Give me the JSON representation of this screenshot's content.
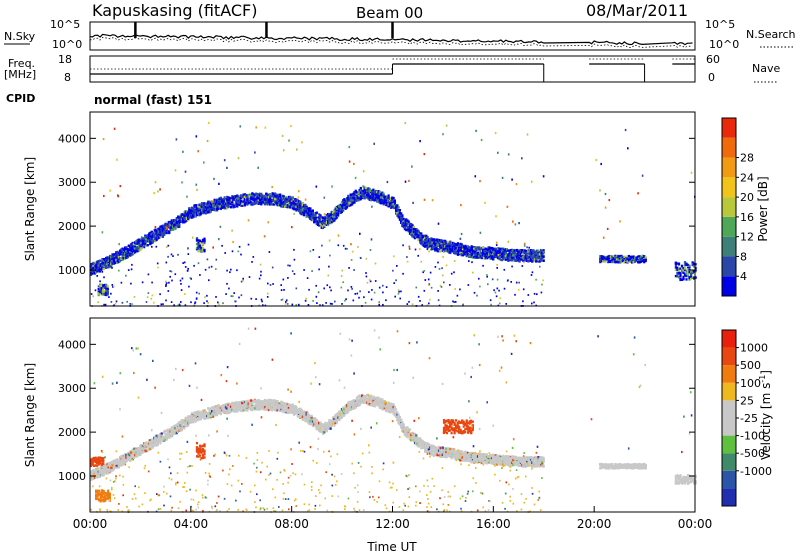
{
  "header": {
    "station": "Kapuskasing (fitACF)",
    "beam": "Beam 00",
    "date": "08/Mar/2011"
  },
  "params": {
    "nsky_label": "N.Sky",
    "nsky_ticks": [
      "10^5",
      "10^0"
    ],
    "nsearch_label": "N.Search",
    "nsearch_ticks": [
      "10^5",
      "10^0"
    ],
    "freq_label_1": "Freq.",
    "freq_label_2": "[MHz]",
    "freq_ticks": [
      "18",
      "8"
    ],
    "nave_label": "Nave",
    "nave_ticks": [
      "60",
      "0"
    ],
    "cpid_label": "CPID",
    "cpid_value": "normal (fast) 151"
  },
  "chart_data": [
    {
      "type": "heatmap",
      "panel": "power",
      "xlabel": "",
      "ylabel": "Slant Range [km]",
      "xlim": [
        0,
        24
      ],
      "ylim": [
        180,
        4600
      ],
      "yticks": [
        1000,
        2000,
        3000,
        4000
      ],
      "colorbar_label": "Power [dB]",
      "colorbar_ticks": [
        "4",
        "8",
        "12",
        "16",
        "20",
        "24",
        "28"
      ],
      "colorbar_colors": [
        "#0000e6",
        "#2a46a8",
        "#3f7f7a",
        "#4fa85a",
        "#b8c83a",
        "#f0c418",
        "#f29a12",
        "#f06a0c",
        "#e82a0a"
      ],
      "echo_bands": [
        {
          "x": [
            0.0,
            0.5,
            1.0,
            1.6,
            2.2,
            2.8,
            3.4,
            4.0,
            4.6,
            5.2,
            5.8,
            6.5,
            7.2,
            8.0,
            8.6,
            9.2,
            9.6,
            10.2,
            10.8,
            11.4,
            12.0,
            12.4,
            12.8,
            13.2,
            13.6,
            14.2,
            15.0,
            16.0,
            17.0,
            18.0
          ],
          "y": [
            1050,
            1150,
            1300,
            1500,
            1700,
            1900,
            2100,
            2350,
            2450,
            2550,
            2600,
            2650,
            2650,
            2550,
            2350,
            2100,
            2250,
            2600,
            2800,
            2700,
            2550,
            2100,
            1900,
            1700,
            1600,
            1550,
            1450,
            1400,
            1350,
            1350
          ],
          "width": 260
        }
      ],
      "echo_patches": [
        {
          "x": [
            0.3,
            0.7
          ],
          "y": [
            450,
            700
          ]
        },
        {
          "x": [
            4.2,
            4.5
          ],
          "y": [
            1450,
            1750
          ]
        },
        {
          "x": [
            20.2,
            22.0
          ],
          "y": [
            1200,
            1350
          ]
        },
        {
          "x": [
            23.2,
            24.0
          ],
          "y": [
            800,
            1200
          ]
        }
      ],
      "data_gaps": [
        [
          18.0,
          19.8
        ],
        [
          22.0,
          23.1
        ]
      ]
    },
    {
      "type": "heatmap",
      "panel": "velocity",
      "xlabel": "Time UT",
      "ylabel": "Slant Range [km]",
      "xlim": [
        0,
        24
      ],
      "ylim": [
        180,
        4600
      ],
      "xticks": [
        "00:00",
        "04:00",
        "08:00",
        "12:00",
        "16:00",
        "20:00",
        "00:00"
      ],
      "yticks": [
        1000,
        2000,
        3000,
        4000
      ],
      "colorbar_label": "Velocity [m s^-1]",
      "colorbar_ticks": [
        "1000",
        "500",
        "100",
        "25",
        "-25",
        "-100",
        "-500",
        "-1000"
      ],
      "colorbar_colors": [
        "#1f2fb0",
        "#2b55a8",
        "#3f8a6a",
        "#5fbf3f",
        "#c8c8c8",
        "#c8c8c8",
        "#f0b820",
        "#f07c10",
        "#e84810",
        "#e8200c"
      ],
      "echo_bands": [
        {
          "x": [
            0.0,
            0.5,
            1.0,
            1.6,
            2.2,
            2.8,
            3.4,
            4.0,
            4.6,
            5.2,
            5.8,
            6.5,
            7.2,
            8.0,
            8.6,
            9.2,
            9.6,
            10.2,
            10.8,
            11.4,
            12.0,
            12.4,
            12.8,
            13.2,
            13.6,
            14.2,
            15.0,
            16.0,
            17.0,
            18.0
          ],
          "y": [
            1050,
            1150,
            1300,
            1500,
            1700,
            1900,
            2100,
            2350,
            2450,
            2550,
            2600,
            2650,
            2650,
            2550,
            2350,
            2100,
            2250,
            2600,
            2800,
            2700,
            2550,
            2100,
            1900,
            1700,
            1600,
            1550,
            1450,
            1400,
            1350,
            1350
          ],
          "width": 220
        }
      ],
      "echo_patches": [
        {
          "x": [
            0.2,
            0.8
          ],
          "y": [
            450,
            700
          ],
          "color": "#f07c10"
        },
        {
          "x": [
            4.2,
            4.5
          ],
          "y": [
            1400,
            1800
          ],
          "color": "#e84810"
        },
        {
          "x": [
            14.0,
            15.2
          ],
          "y": [
            2000,
            2300
          ],
          "color": "#e84810"
        },
        {
          "x": [
            0.0,
            0.5
          ],
          "y": [
            1250,
            1450
          ],
          "color": "#e84810"
        },
        {
          "x": [
            20.2,
            22.0
          ],
          "y": [
            1200,
            1300
          ],
          "color": "#c8c8c8"
        },
        {
          "x": [
            23.2,
            24.0
          ],
          "y": [
            850,
            1050
          ],
          "color": "#c8c8c8"
        }
      ],
      "data_gaps": [
        [
          18.0,
          19.8
        ],
        [
          22.0,
          23.1
        ]
      ]
    }
  ]
}
